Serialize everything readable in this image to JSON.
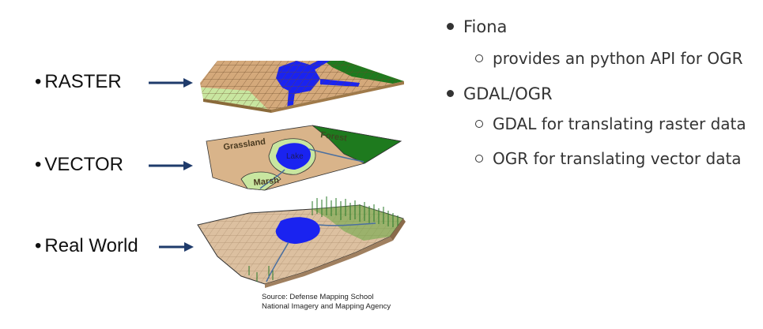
{
  "left_labels": {
    "raster": "RASTER",
    "vector": "VECTOR",
    "real_world": "Real World",
    "bullet": "•"
  },
  "figure": {
    "vector_labels": {
      "grassland": "Grassland",
      "forest": "Forest",
      "lake": "Lake",
      "marsh": "Marsh"
    },
    "source_line1": "Source: Defense Mapping School",
    "source_line2": "National Imagery and Mapping Agency"
  },
  "bullets": [
    {
      "text": "Fiona",
      "sub": [
        "provides an python API for OGR"
      ]
    },
    {
      "text": "GDAL/OGR",
      "sub": [
        "GDAL for translating raster data",
        "OGR for translating vector data"
      ]
    }
  ],
  "colors": {
    "land": "#d9b48a",
    "water": "#1a23f0",
    "forest": "#1e7a1e",
    "grass": "#c8e6a0",
    "arrow": "#1f3b6b"
  }
}
